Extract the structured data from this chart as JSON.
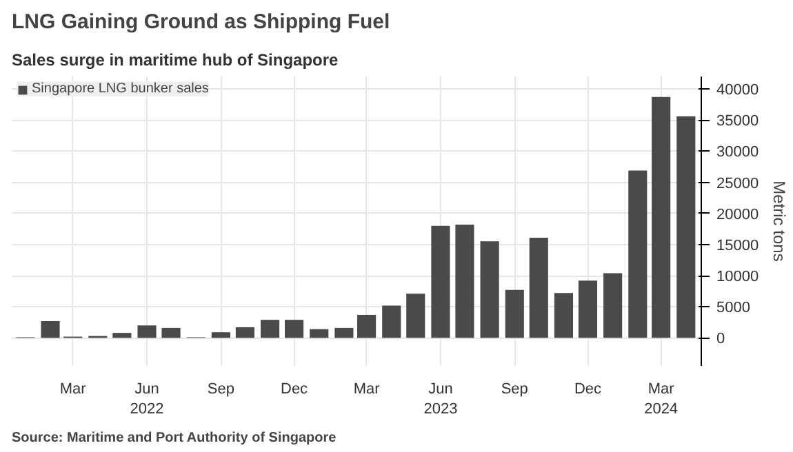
{
  "chart_data": {
    "type": "bar",
    "title": "LNG Gaining Ground as Shipping Fuel",
    "subtitle": "Sales surge in maritime hub of Singapore",
    "ylabel": "Metric tons",
    "x": [
      "2022-01",
      "2022-02",
      "2022-03",
      "2022-04",
      "2022-05",
      "2022-06",
      "2022-07",
      "2022-08",
      "2022-09",
      "2022-10",
      "2022-11",
      "2022-12",
      "2023-01",
      "2023-02",
      "2023-03",
      "2023-04",
      "2023-05",
      "2023-06",
      "2023-07",
      "2023-08",
      "2023-09",
      "2023-10",
      "2023-11",
      "2023-12",
      "2024-01",
      "2024-02",
      "2024-03",
      "2024-04"
    ],
    "series": [
      {
        "name": "Singapore LNG bunker sales",
        "color": "#4a4a4a",
        "values": [
          100,
          2700,
          200,
          300,
          800,
          2000,
          1600,
          100,
          900,
          1700,
          2900,
          2900,
          1400,
          1600,
          3700,
          5200,
          7100,
          18000,
          18200,
          15500,
          7700,
          16100,
          7200,
          9200,
          10400,
          26900,
          38700,
          35600
        ]
      }
    ],
    "xlim": [
      "2021-12-15",
      "2024-04-20"
    ],
    "xticks": [
      {
        "value": "2022-03",
        "label": "Mar"
      },
      {
        "value": "2022-06",
        "label": "Jun\n2022"
      },
      {
        "value": "2022-09",
        "label": "Sep"
      },
      {
        "value": "2022-12",
        "label": "Dec"
      },
      {
        "value": "2023-03",
        "label": "Mar"
      },
      {
        "value": "2023-06",
        "label": "Jun\n2023"
      },
      {
        "value": "2023-09",
        "label": "Sep"
      },
      {
        "value": "2023-12",
        "label": "Dec"
      },
      {
        "value": "2024-03",
        "label": "Mar\n2024"
      }
    ],
    "ylim": [
      -4500,
      42000
    ],
    "yticks": [
      0,
      5000,
      10000,
      15000,
      20000,
      25000,
      30000,
      35000,
      40000
    ],
    "grid": true,
    "legend": "top left",
    "annotations": [
      "Source: Maritime and Port Authority of Singapore"
    ]
  }
}
